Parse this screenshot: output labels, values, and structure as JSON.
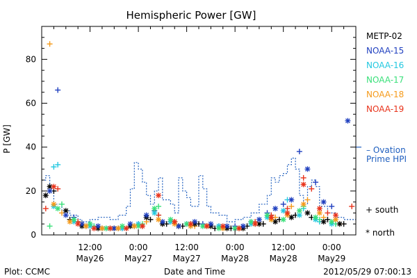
{
  "chart_data": {
    "type": "scatter",
    "title": "Hemispheric Power [GW]",
    "ylabel": "P [GW]",
    "xlabel": "Date and Time",
    "ylim": [
      0,
      95
    ],
    "yticks": [
      0,
      20,
      40,
      60,
      80
    ],
    "xlim_hours": [
      0,
      78
    ],
    "xticks": [
      {
        "hour": 12,
        "label": [
          "12:00",
          "May26"
        ]
      },
      {
        "hour": 24,
        "label": [
          "0:00",
          "May27"
        ]
      },
      {
        "hour": 36,
        "label": [
          "12:00",
          "May27"
        ]
      },
      {
        "hour": 48,
        "label": [
          "0:00",
          "May28"
        ]
      },
      {
        "hour": 60,
        "label": [
          "12:00",
          "May28"
        ]
      },
      {
        "hour": 72,
        "label": [
          "0:00",
          "May29"
        ]
      }
    ],
    "legend": [
      {
        "name": "METP-02",
        "color": "#000000"
      },
      {
        "name": "NOAA-15",
        "color": "#1f3fbf"
      },
      {
        "name": "NOAA-16",
        "color": "#22c8e0"
      },
      {
        "name": "NOAA-17",
        "color": "#3ae07a"
      },
      {
        "name": "NOAA-18",
        "color": "#f59a1a"
      },
      {
        "name": "NOAA-19",
        "color": "#e8321a"
      }
    ],
    "ovation_label": [
      "– Ovation",
      "Prime HPI"
    ],
    "marker_legend": [
      {
        "symbol": "+",
        "label": "south"
      },
      {
        "symbol": "*",
        "label": "north"
      }
    ],
    "ovation_color": "#1f5fbf",
    "ovation_series": {
      "x": [
        0,
        1,
        1,
        2,
        2,
        3,
        3,
        5,
        5,
        7,
        7,
        9,
        9,
        10,
        10,
        12,
        12,
        14,
        14,
        17,
        17,
        19,
        19,
        21,
        21,
        22,
        22,
        23,
        23,
        24,
        24,
        25,
        25,
        26,
        26,
        27,
        27,
        28,
        28,
        29,
        29,
        30,
        30,
        32,
        32,
        33,
        33,
        34,
        34,
        35,
        35,
        36,
        36,
        37,
        37,
        39,
        39,
        40,
        40,
        41,
        41,
        42,
        42,
        44,
        44,
        46,
        46,
        48,
        48,
        50,
        50,
        52,
        52,
        54,
        54,
        56,
        56,
        57,
        57,
        58,
        58,
        59,
        59,
        60,
        60,
        61,
        61,
        62,
        62,
        63,
        63,
        64,
        64,
        65,
        65,
        66,
        66,
        67,
        67,
        68,
        68,
        69,
        69,
        71,
        71,
        73,
        73,
        75,
        75,
        78
      ],
      "y": [
        25,
        25,
        27,
        27,
        20,
        20,
        14,
        14,
        11,
        11,
        9,
        9,
        7,
        7,
        6,
        6,
        7,
        7,
        8,
        8,
        7,
        7,
        9,
        9,
        13,
        13,
        21,
        21,
        33,
        33,
        30,
        30,
        24,
        24,
        18,
        18,
        14,
        14,
        20,
        20,
        26,
        26,
        16,
        16,
        14,
        14,
        10,
        10,
        26,
        26,
        20,
        20,
        17,
        17,
        13,
        13,
        27,
        27,
        21,
        21,
        13,
        13,
        10,
        10,
        9,
        9,
        6,
        6,
        7,
        7,
        8,
        8,
        10,
        10,
        14,
        14,
        18,
        18,
        26,
        26,
        24,
        24,
        27,
        27,
        28,
        28,
        32,
        32,
        35,
        35,
        30,
        30,
        18,
        18,
        14,
        14,
        22,
        22,
        25,
        25,
        22,
        22,
        13,
        13,
        10,
        10,
        8,
        8,
        7,
        7
      ]
    },
    "points": {
      "series_order": [
        "METP-02",
        "NOAA-15",
        "NOAA-16",
        "NOAA-17",
        "NOAA-18",
        "NOAA-19"
      ],
      "north": [
        [
          0,
          1,
          18
        ],
        [
          0,
          2,
          22
        ],
        [
          0,
          6,
          11
        ],
        [
          0,
          10,
          4
        ],
        [
          0,
          14,
          3
        ],
        [
          0,
          18,
          3
        ],
        [
          0,
          22,
          4
        ],
        [
          0,
          26,
          8
        ],
        [
          0,
          30,
          5
        ],
        [
          0,
          34,
          4
        ],
        [
          0,
          38,
          5
        ],
        [
          0,
          42,
          4
        ],
        [
          0,
          46,
          3
        ],
        [
          0,
          50,
          3
        ],
        [
          0,
          54,
          5
        ],
        [
          0,
          58,
          6
        ],
        [
          0,
          62,
          8
        ],
        [
          0,
          66,
          10
        ],
        [
          0,
          70,
          6
        ],
        [
          0,
          74,
          5
        ],
        [
          1,
          2,
          20
        ],
        [
          1,
          6,
          9
        ],
        [
          1,
          10,
          5
        ],
        [
          1,
          14,
          4
        ],
        [
          1,
          18,
          3
        ],
        [
          1,
          22,
          5
        ],
        [
          1,
          26,
          9
        ],
        [
          1,
          30,
          6
        ],
        [
          1,
          34,
          4
        ],
        [
          1,
          38,
          6
        ],
        [
          1,
          42,
          5
        ],
        [
          1,
          46,
          4
        ],
        [
          1,
          50,
          4
        ],
        [
          1,
          54,
          7
        ],
        [
          1,
          58,
          12
        ],
        [
          1,
          62,
          16
        ],
        [
          1,
          66,
          30
        ],
        [
          1,
          70,
          15
        ],
        [
          1,
          76,
          52
        ],
        [
          2,
          3,
          13
        ],
        [
          2,
          8,
          6
        ],
        [
          2,
          12,
          4
        ],
        [
          2,
          16,
          3
        ],
        [
          2,
          20,
          3
        ],
        [
          2,
          24,
          5
        ],
        [
          2,
          28,
          10
        ],
        [
          2,
          32,
          6
        ],
        [
          2,
          36,
          5
        ],
        [
          2,
          40,
          4
        ],
        [
          2,
          44,
          4
        ],
        [
          2,
          48,
          3
        ],
        [
          2,
          52,
          5
        ],
        [
          2,
          56,
          8
        ],
        [
          2,
          60,
          11
        ],
        [
          2,
          64,
          9
        ],
        [
          2,
          68,
          7
        ],
        [
          2,
          72,
          5
        ],
        [
          3,
          4,
          12
        ],
        [
          3,
          8,
          7
        ],
        [
          3,
          12,
          5
        ],
        [
          3,
          16,
          3
        ],
        [
          3,
          20,
          4
        ],
        [
          3,
          24,
          4
        ],
        [
          3,
          28,
          12
        ],
        [
          3,
          32,
          7
        ],
        [
          3,
          36,
          5
        ],
        [
          3,
          40,
          4
        ],
        [
          3,
          44,
          3
        ],
        [
          3,
          48,
          3
        ],
        [
          3,
          52,
          6
        ],
        [
          3,
          56,
          9
        ],
        [
          3,
          60,
          7
        ],
        [
          3,
          64,
          11
        ],
        [
          3,
          68,
          8
        ],
        [
          3,
          72,
          6
        ],
        [
          4,
          3,
          14
        ],
        [
          4,
          7,
          6
        ],
        [
          4,
          11,
          4
        ],
        [
          4,
          15,
          3
        ],
        [
          4,
          19,
          3
        ],
        [
          4,
          23,
          4
        ],
        [
          4,
          29,
          7
        ],
        [
          4,
          33,
          5
        ],
        [
          4,
          37,
          4
        ],
        [
          4,
          41,
          4
        ],
        [
          4,
          45,
          3
        ],
        [
          4,
          49,
          3
        ],
        [
          4,
          53,
          5
        ],
        [
          4,
          57,
          7
        ],
        [
          4,
          61,
          9
        ],
        [
          4,
          65,
          14
        ],
        [
          4,
          69,
          10
        ],
        [
          4,
          73,
          7
        ],
        [
          5,
          3,
          22
        ],
        [
          5,
          9,
          5
        ],
        [
          5,
          13,
          3
        ],
        [
          5,
          17,
          3
        ],
        [
          5,
          21,
          3
        ],
        [
          5,
          25,
          4
        ],
        [
          5,
          29,
          18
        ],
        [
          5,
          33,
          6
        ],
        [
          5,
          37,
          5
        ],
        [
          5,
          41,
          4
        ],
        [
          5,
          45,
          4
        ],
        [
          5,
          49,
          3
        ],
        [
          5,
          53,
          5
        ],
        [
          5,
          57,
          8
        ],
        [
          5,
          61,
          10
        ],
        [
          5,
          65,
          23
        ],
        [
          5,
          69,
          12
        ],
        [
          5,
          73,
          9
        ]
      ],
      "south": [
        [
          0,
          3,
          20
        ],
        [
          0,
          7,
          7
        ],
        [
          0,
          11,
          4
        ],
        [
          0,
          15,
          3
        ],
        [
          0,
          19,
          3
        ],
        [
          0,
          23,
          4
        ],
        [
          0,
          27,
          7
        ],
        [
          0,
          31,
          5
        ],
        [
          0,
          35,
          4
        ],
        [
          0,
          39,
          5
        ],
        [
          0,
          43,
          3
        ],
        [
          0,
          47,
          3
        ],
        [
          0,
          51,
          4
        ],
        [
          0,
          55,
          5
        ],
        [
          0,
          59,
          7
        ],
        [
          0,
          63,
          9
        ],
        [
          0,
          67,
          8
        ],
        [
          0,
          71,
          7
        ],
        [
          0,
          75,
          5
        ],
        [
          1,
          4,
          66
        ],
        [
          1,
          8,
          8
        ],
        [
          1,
          12,
          5
        ],
        [
          1,
          16,
          3
        ],
        [
          1,
          20,
          3
        ],
        [
          1,
          24,
          5
        ],
        [
          1,
          28,
          11
        ],
        [
          1,
          32,
          6
        ],
        [
          1,
          36,
          5
        ],
        [
          1,
          40,
          5
        ],
        [
          1,
          44,
          4
        ],
        [
          1,
          48,
          4
        ],
        [
          1,
          52,
          6
        ],
        [
          1,
          56,
          10
        ],
        [
          1,
          60,
          14
        ],
        [
          1,
          64,
          38
        ],
        [
          1,
          68,
          24
        ],
        [
          1,
          72,
          13
        ],
        [
          2,
          3,
          31
        ],
        [
          2,
          4,
          32
        ],
        [
          2,
          9,
          6
        ],
        [
          2,
          13,
          4
        ],
        [
          2,
          17,
          3
        ],
        [
          2,
          21,
          3
        ],
        [
          2,
          25,
          4
        ],
        [
          2,
          29,
          9
        ],
        [
          2,
          33,
          6
        ],
        [
          2,
          37,
          4
        ],
        [
          2,
          41,
          4
        ],
        [
          2,
          45,
          3
        ],
        [
          2,
          49,
          3
        ],
        [
          2,
          53,
          5
        ],
        [
          2,
          57,
          9
        ],
        [
          2,
          61,
          16
        ],
        [
          2,
          65,
          12
        ],
        [
          2,
          69,
          6
        ],
        [
          2,
          73,
          5
        ],
        [
          3,
          2,
          4
        ],
        [
          3,
          5,
          14
        ],
        [
          3,
          9,
          6
        ],
        [
          3,
          13,
          4
        ],
        [
          3,
          17,
          3
        ],
        [
          3,
          21,
          3
        ],
        [
          3,
          25,
          5
        ],
        [
          3,
          29,
          13
        ],
        [
          3,
          33,
          6
        ],
        [
          3,
          37,
          5
        ],
        [
          3,
          41,
          4
        ],
        [
          3,
          45,
          3
        ],
        [
          3,
          49,
          3
        ],
        [
          3,
          53,
          5
        ],
        [
          3,
          57,
          7
        ],
        [
          3,
          61,
          10
        ],
        [
          3,
          65,
          13
        ],
        [
          3,
          69,
          7
        ],
        [
          3,
          73,
          5
        ],
        [
          4,
          2,
          87
        ],
        [
          4,
          5,
          10
        ],
        [
          4,
          10,
          5
        ],
        [
          4,
          14,
          3
        ],
        [
          4,
          18,
          3
        ],
        [
          4,
          22,
          4
        ],
        [
          4,
          26,
          6
        ],
        [
          4,
          30,
          5
        ],
        [
          4,
          34,
          4
        ],
        [
          4,
          38,
          4
        ],
        [
          4,
          42,
          4
        ],
        [
          4,
          46,
          3
        ],
        [
          4,
          50,
          3
        ],
        [
          4,
          54,
          5
        ],
        [
          4,
          58,
          8
        ],
        [
          4,
          62,
          13
        ],
        [
          4,
          66,
          16
        ],
        [
          4,
          70,
          8
        ],
        [
          4,
          74,
          5
        ],
        [
          5,
          1,
          12
        ],
        [
          5,
          4,
          21
        ],
        [
          5,
          9,
          6
        ],
        [
          5,
          13,
          3
        ],
        [
          5,
          17,
          3
        ],
        [
          5,
          21,
          3
        ],
        [
          5,
          25,
          4
        ],
        [
          5,
          29,
          9
        ],
        [
          5,
          33,
          6
        ],
        [
          5,
          37,
          5
        ],
        [
          5,
          41,
          4
        ],
        [
          5,
          45,
          3
        ],
        [
          5,
          49,
          3
        ],
        [
          5,
          53,
          6
        ],
        [
          5,
          57,
          9
        ],
        [
          5,
          61,
          12
        ],
        [
          5,
          65,
          26
        ],
        [
          5,
          67,
          21
        ],
        [
          5,
          71,
          10
        ],
        [
          5,
          77,
          13
        ]
      ]
    }
  },
  "footer": {
    "plot_credit": "Plot: CCMC",
    "timestamp": "2012/05/29 07:00:13"
  }
}
